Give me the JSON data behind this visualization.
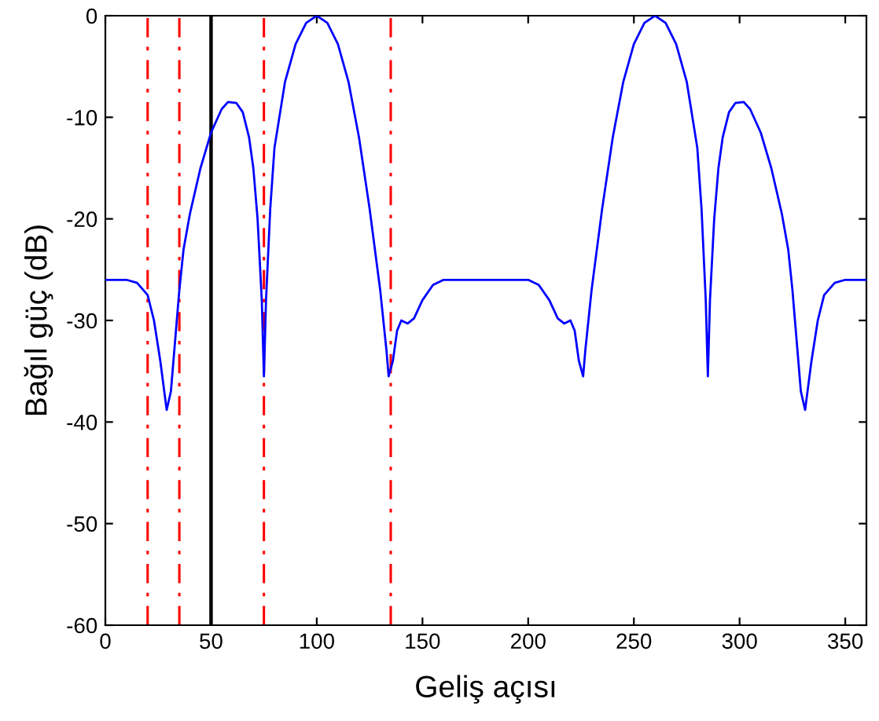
{
  "chart_data": {
    "type": "line",
    "xlabel": "Geliş açısı",
    "ylabel": "Bağıl güç (dB)",
    "xlim": [
      0,
      360
    ],
    "ylim": [
      -60,
      0
    ],
    "xticks": [
      0,
      50,
      100,
      150,
      200,
      250,
      300,
      350
    ],
    "yticks": [
      -60,
      -50,
      -40,
      -30,
      -20,
      -10,
      0
    ],
    "grid": false,
    "marker": "none",
    "line_style": "solid",
    "series": [
      {
        "color": "#0000ff",
        "x": [
          0,
          10,
          15,
          20,
          23,
          26,
          29,
          31,
          33,
          35,
          37,
          40,
          45,
          50,
          55,
          58,
          62,
          65,
          68,
          70,
          72,
          74,
          75,
          76,
          78,
          80,
          85,
          90,
          95,
          100,
          105,
          110,
          115,
          120,
          125,
          130,
          133,
          134,
          136,
          138,
          140,
          143,
          146,
          150,
          155,
          160,
          180,
          200,
          205,
          210,
          214,
          217,
          220,
          222,
          224,
          226,
          227,
          230,
          235,
          240,
          245,
          250,
          255,
          260,
          265,
          270,
          275,
          280,
          282,
          284,
          285,
          286,
          288,
          290,
          292,
          295,
          298,
          302,
          305,
          310,
          315,
          320,
          323,
          325,
          327,
          329,
          331,
          334,
          337,
          340,
          345,
          350,
          360
        ],
        "values": [
          -26,
          -26,
          -26.3,
          -27.5,
          -30,
          -34,
          -38.8,
          -37,
          -32,
          -27,
          -23,
          -19.5,
          -15,
          -11.5,
          -9.2,
          -8.5,
          -8.6,
          -9.5,
          -12,
          -15,
          -20,
          -28,
          -35.5,
          -28,
          -19,
          -13,
          -6.5,
          -2.8,
          -0.7,
          0,
          -0.7,
          -2.8,
          -6.5,
          -12,
          -19,
          -27,
          -33,
          -35.5,
          -34,
          -31,
          -30,
          -30.3,
          -29.8,
          -28,
          -26.5,
          -26,
          -26,
          -26,
          -26.5,
          -28,
          -29.8,
          -30.3,
          -30,
          -31,
          -34,
          -35.5,
          -33,
          -27,
          -19,
          -12,
          -6.5,
          -2.8,
          -0.7,
          0,
          -0.7,
          -2.8,
          -6.5,
          -13,
          -19,
          -28,
          -35.5,
          -28,
          -20,
          -15,
          -12,
          -9.5,
          -8.6,
          -8.5,
          -9.2,
          -11.5,
          -15,
          -19.5,
          -23,
          -27,
          -32,
          -37,
          -38.8,
          -34,
          -30,
          -27.5,
          -26.3,
          -26,
          -26
        ]
      }
    ],
    "ref_lines": [
      {
        "axis": "x",
        "value": 20,
        "color": "#ff0000",
        "line_style": "dashdot"
      },
      {
        "axis": "x",
        "value": 35,
        "color": "#ff0000",
        "line_style": "dashdot"
      },
      {
        "axis": "x",
        "value": 50,
        "color": "#000000",
        "line_style": "solid"
      },
      {
        "axis": "x",
        "value": 75,
        "color": "#ff0000",
        "line_style": "dashdot"
      },
      {
        "axis": "x",
        "value": 135,
        "color": "#ff0000",
        "line_style": "dashdot"
      }
    ]
  }
}
